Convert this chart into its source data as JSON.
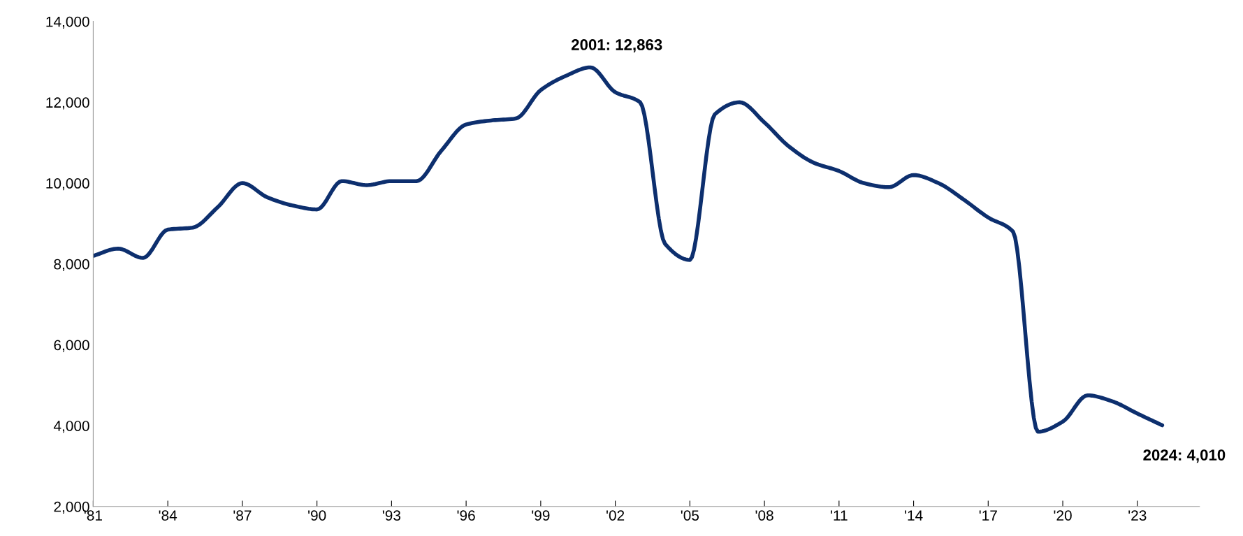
{
  "chart_data": {
    "type": "line",
    "x": [
      1981,
      1982,
      1983,
      1984,
      1985,
      1986,
      1987,
      1988,
      1989,
      1990,
      1991,
      1992,
      1993,
      1994,
      1995,
      1996,
      1997,
      1998,
      1999,
      2000,
      2001,
      2002,
      2003,
      2004,
      2005,
      2006,
      2007,
      2008,
      2009,
      2010,
      2011,
      2012,
      2013,
      2014,
      2015,
      2016,
      2017,
      2018,
      2019,
      2020,
      2021,
      2022,
      2023,
      2024
    ],
    "series": [
      {
        "color": "#0d2f6e",
        "values": [
          8200,
          8380,
          8150,
          8850,
          8900,
          9400,
          10000,
          9650,
          9450,
          9350,
          10050,
          9950,
          10050,
          10050,
          10800,
          11450,
          11550,
          11600,
          12300,
          12650,
          12863,
          12250,
          12000,
          8500,
          8100,
          11700,
          12000,
          11500,
          10900,
          10500,
          10300,
          10000,
          9900,
          10200,
          10000,
          9600,
          9150,
          8800,
          3850,
          4100,
          4750,
          4600,
          4300,
          4010
        ]
      }
    ],
    "xlim": [
      1981,
      2025.5
    ],
    "xticks": [
      {
        "value": 1981,
        "label": "'81"
      },
      {
        "value": 1984,
        "label": "'84"
      },
      {
        "value": 1987,
        "label": "'87"
      },
      {
        "value": 1990,
        "label": "'90"
      },
      {
        "value": 1993,
        "label": "'93"
      },
      {
        "value": 1996,
        "label": "'96"
      },
      {
        "value": 1999,
        "label": "'99"
      },
      {
        "value": 2002,
        "label": "'02"
      },
      {
        "value": 2005,
        "label": "'05"
      },
      {
        "value": 2008,
        "label": "'08"
      },
      {
        "value": 2011,
        "label": "'11"
      },
      {
        "value": 2014,
        "label": "'14"
      },
      {
        "value": 2017,
        "label": "'17"
      },
      {
        "value": 2020,
        "label": "'20"
      },
      {
        "value": 2023,
        "label": "'23"
      }
    ],
    "ylim": [
      2000,
      14000
    ],
    "yticks": [
      {
        "value": 2000,
        "label": "2,000"
      },
      {
        "value": 4000,
        "label": "4,000"
      },
      {
        "value": 6000,
        "label": "6,000"
      },
      {
        "value": 8000,
        "label": "8,000"
      },
      {
        "value": 10000,
        "label": "10,000"
      },
      {
        "value": 12000,
        "label": "12,000"
      },
      {
        "value": 14000,
        "label": "14,000"
      }
    ],
    "grid": false,
    "marker": "none",
    "line_style": "solid",
    "annotations": [
      {
        "text": "2001: 12,863",
        "x": 2001,
        "y": 12863
      },
      {
        "text": "2024: 4,010",
        "x": 2024,
        "y": 4010
      }
    ]
  }
}
